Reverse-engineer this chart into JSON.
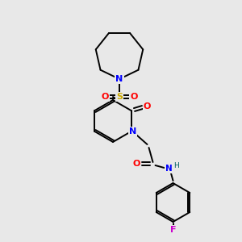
{
  "bg_color": "#e8e8e8",
  "atom_colors": {
    "N": "#0000ff",
    "O": "#ff0000",
    "S": "#ccaa00",
    "F": "#cc00cc",
    "H": "#006060",
    "C": "#000000"
  },
  "figsize": [
    3.0,
    3.0
  ],
  "dpi": 100,
  "lw": 1.4
}
